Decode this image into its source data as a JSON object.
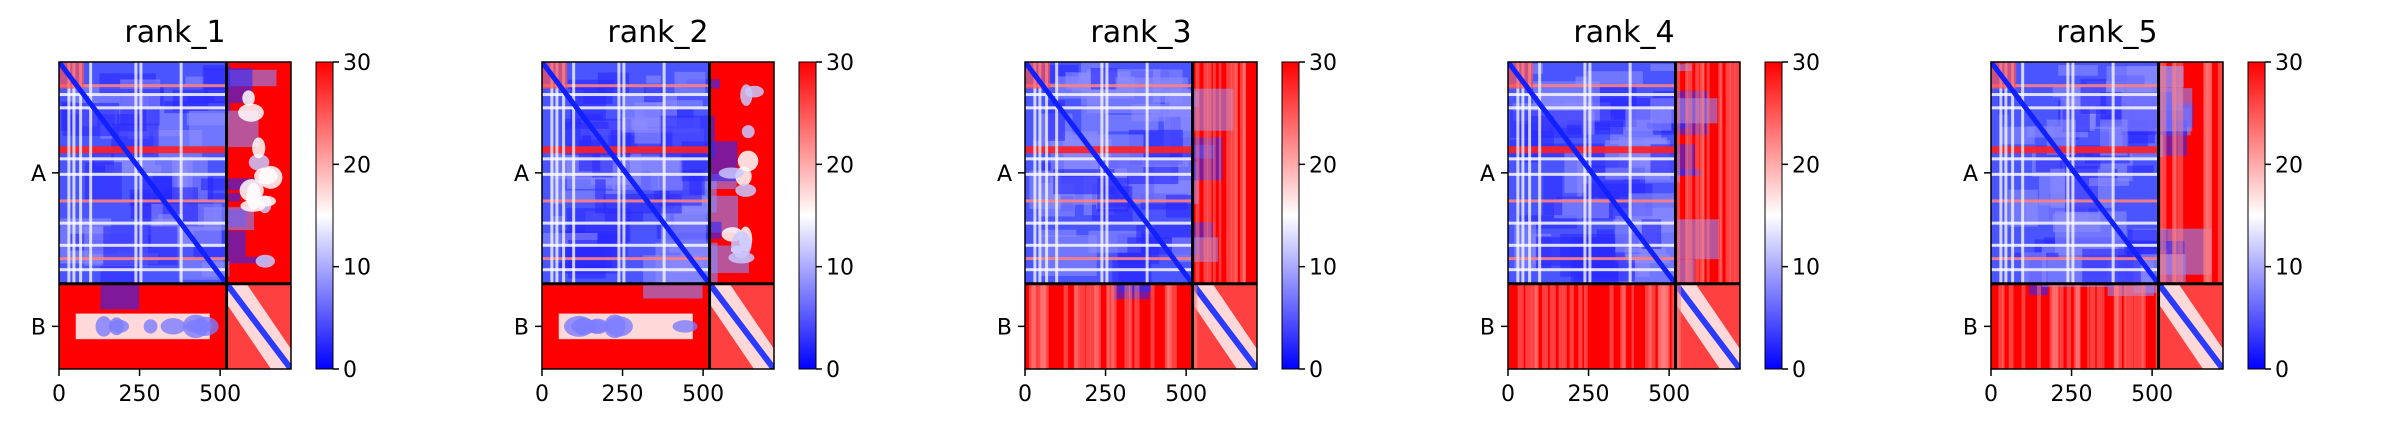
{
  "chart_data": [
    {
      "type": "heatmap",
      "title": "rank_1",
      "chains": [
        "A",
        "B"
      ],
      "chain_boundary": 520,
      "x_range": [
        0,
        720
      ],
      "x_ticks": [
        0,
        250,
        500
      ],
      "colorbar": {
        "range": [
          0,
          30
        ],
        "ticks": [
          0,
          10,
          20,
          30
        ],
        "colors": [
          "#0000ff",
          "#ffffff",
          "#ff0000"
        ]
      },
      "blocks": {
        "A_A": "low",
        "A_B": "high",
        "B_A": "high",
        "B_B": "low"
      },
      "interchain_contacts": "partial"
    },
    {
      "type": "heatmap",
      "title": "rank_2",
      "chains": [
        "A",
        "B"
      ],
      "chain_boundary": 520,
      "x_range": [
        0,
        720
      ],
      "x_ticks": [
        0,
        250,
        500
      ],
      "colorbar": {
        "range": [
          0,
          30
        ],
        "ticks": [
          0,
          10,
          20,
          30
        ],
        "colors": [
          "#0000ff",
          "#ffffff",
          "#ff0000"
        ]
      },
      "blocks": {
        "A_A": "low",
        "A_B": "high",
        "B_A": "high",
        "B_B": "low"
      },
      "interchain_contacts": "partial"
    },
    {
      "type": "heatmap",
      "title": "rank_3",
      "chains": [
        "A",
        "B"
      ],
      "chain_boundary": 520,
      "x_range": [
        0,
        720
      ],
      "x_ticks": [
        0,
        250,
        500
      ],
      "colorbar": {
        "range": [
          0,
          30
        ],
        "ticks": [
          0,
          10,
          20,
          30
        ],
        "colors": [
          "#0000ff",
          "#ffffff",
          "#ff0000"
        ]
      },
      "blocks": {
        "A_A": "low",
        "A_B": "high",
        "B_A": "high",
        "B_B": "low"
      },
      "interchain_contacts": "none"
    },
    {
      "type": "heatmap",
      "title": "rank_4",
      "chains": [
        "A",
        "B"
      ],
      "chain_boundary": 520,
      "x_range": [
        0,
        720
      ],
      "x_ticks": [
        0,
        250,
        500
      ],
      "colorbar": {
        "range": [
          0,
          30
        ],
        "ticks": [
          0,
          10,
          20,
          30
        ],
        "colors": [
          "#0000ff",
          "#ffffff",
          "#ff0000"
        ]
      },
      "blocks": {
        "A_A": "low",
        "A_B": "high",
        "B_A": "high",
        "B_B": "low"
      },
      "interchain_contacts": "none"
    },
    {
      "type": "heatmap",
      "title": "rank_5",
      "chains": [
        "A",
        "B"
      ],
      "chain_boundary": 520,
      "x_range": [
        0,
        720
      ],
      "x_ticks": [
        0,
        250,
        500
      ],
      "colorbar": {
        "range": [
          0,
          30
        ],
        "ticks": [
          0,
          10,
          20,
          30
        ],
        "colors": [
          "#0000ff",
          "#ffffff",
          "#ff0000"
        ]
      },
      "blocks": {
        "A_A": "low",
        "A_B": "high",
        "B_A": "high",
        "B_B": "low"
      },
      "interchain_contacts": "none"
    }
  ]
}
